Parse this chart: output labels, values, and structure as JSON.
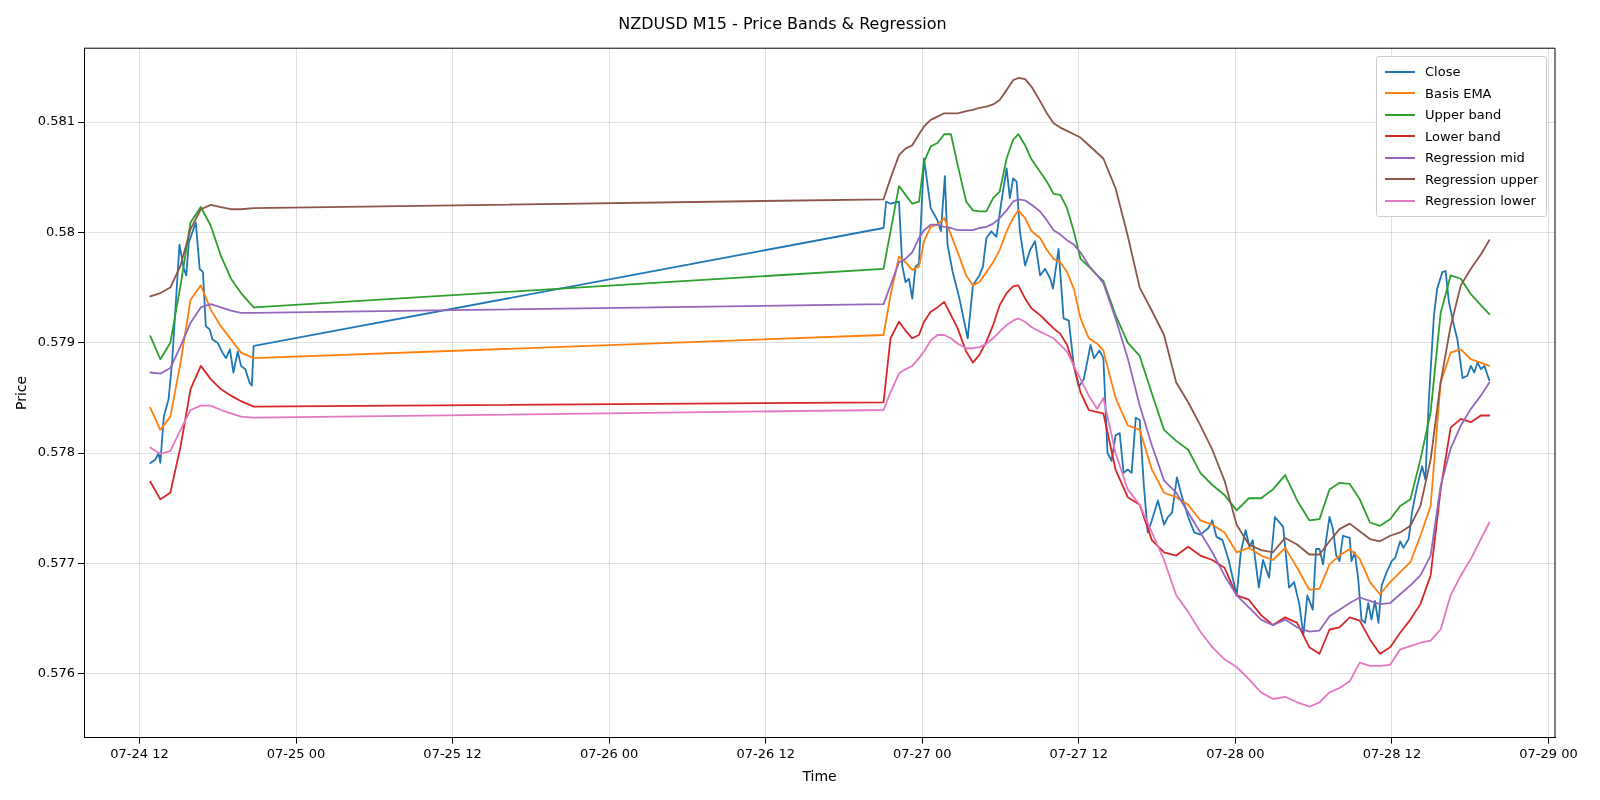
{
  "chart_data": {
    "type": "line",
    "title": "NZDUSD M15 - Price Bands & Regression",
    "xlabel": "Time",
    "ylabel": "Price",
    "xlim": [
      "--07-24T07:45",
      "--07-29T00:30"
    ],
    "ylim": [
      0.57542,
      0.58167
    ],
    "xticks": [
      {
        "value": "--07-24T12:00",
        "label": "07-24 12"
      },
      {
        "value": "--07-25T00:00",
        "label": "07-25 00"
      },
      {
        "value": "--07-25T12:00",
        "label": "07-25 12"
      },
      {
        "value": "--07-26T00:00",
        "label": "07-26 00"
      },
      {
        "value": "--07-26T12:00",
        "label": "07-26 12"
      },
      {
        "value": "--07-27T00:00",
        "label": "07-27 00"
      },
      {
        "value": "--07-27T12:00",
        "label": "07-27 12"
      },
      {
        "value": "--07-28T00:00",
        "label": "07-28 00"
      },
      {
        "value": "--07-28T12:00",
        "label": "07-28 12"
      },
      {
        "value": "--07-29T00:00",
        "label": "07-29 00"
      }
    ],
    "yticks": [
      0.576,
      0.577,
      0.578,
      0.579,
      0.58,
      0.581
    ],
    "grid": true,
    "legend": "top right",
    "x": [
      "--07-24T12:50",
      "--07-24T13:36",
      "--07-24T14:22",
      "--07-24T15:09",
      "--07-24T15:55",
      "--07-24T16:42",
      "--07-24T17:28",
      "--07-24T18:14",
      "--07-24T19:01",
      "--07-24T19:47",
      "--07-24T20:45",
      "--07-26T21:02",
      "--07-26T21:34",
      "--07-26T22:13",
      "--07-26T22:43",
      "--07-26T23:14",
      "--07-26T23:45",
      "--07-27T00:08",
      "--07-27T00:39",
      "--07-27T01:10",
      "--07-27T01:41",
      "--07-27T02:12",
      "--07-27T02:43",
      "--07-27T03:22",
      "--07-27T03:53",
      "--07-27T04:23",
      "--07-27T04:55",
      "--07-27T05:26",
      "--07-27T05:56",
      "--07-27T06:28",
      "--07-27T06:58",
      "--07-27T07:22",
      "--07-27T07:53",
      "--07-27T08:23",
      "--07-27T09:02",
      "--07-27T09:33",
      "--07-27T10:04",
      "--07-27T10:35",
      "--07-27T11:06",
      "--07-27T11:37",
      "--07-27T12:08",
      "--07-27T12:46",
      "--07-27T13:25",
      "--07-27T13:53",
      "--07-27T14:49",
      "--07-27T15:45",
      "--07-27T16:40",
      "--07-27T17:36",
      "--07-27T18:32",
      "--07-27T19:28",
      "--07-27T20:23",
      "--07-27T21:19",
      "--07-27T22:14",
      "--07-27T23:10",
      "--07-28T00:06",
      "--07-28T01:02",
      "--07-28T01:58",
      "--07-28T02:53",
      "--07-28T03:49",
      "--07-28T04:44",
      "--07-28T05:40",
      "--07-28T06:27",
      "--07-28T07:13",
      "--07-28T07:59",
      "--07-28T08:46",
      "--07-28T09:32",
      "--07-28T10:19",
      "--07-28T11:05",
      "--07-28T11:52",
      "--07-28T12:38",
      "--07-28T13:25",
      "--07-28T14:11",
      "--07-28T14:58",
      "--07-28T15:44",
      "--07-28T16:30",
      "--07-28T17:17",
      "--07-28T18:03",
      "--07-28T18:49",
      "--07-28T19:28"
    ],
    "series": [
      {
        "name": "Close",
        "color": "#1f77b4",
        "x": [
          "--07-24T12:50",
          "--07-24T13:13",
          "--07-24T13:28",
          "--07-24T13:36",
          "--07-24T13:52",
          "--07-24T14:14",
          "--07-24T14:30",
          "--07-24T15:04",
          "--07-24T15:24",
          "--07-24T15:35",
          "--07-24T15:47",
          "--07-24T16:19",
          "--07-24T16:37",
          "--07-24T16:52",
          "--07-24T17:05",
          "--07-24T17:23",
          "--07-24T17:36",
          "--07-24T17:59",
          "--07-24T18:22",
          "--07-24T18:38",
          "--07-24T18:56",
          "--07-24T19:12",
          "--07-24T19:32",
          "--07-24T19:47",
          "--07-24T20:07",
          "--07-24T20:26",
          "--07-24T20:37",
          "--07-24T20:45",
          "--07-26T21:02",
          "--07-26T21:14",
          "--07-26T21:34",
          "--07-26T22:13",
          "--07-26T22:28",
          "--07-26T22:43",
          "--07-26T22:59",
          "--07-26T23:14",
          "--07-26T23:29",
          "--07-26T23:45",
          "--07-27T00:08",
          "--07-27T00:39",
          "--07-27T01:10",
          "--07-27T01:26",
          "--07-27T01:44",
          "--07-27T01:56",
          "--07-27T02:20",
          "--07-27T02:51",
          "--07-27T03:29",
          "--07-27T03:53",
          "--07-27T04:23",
          "--07-27T04:39",
          "--07-27T04:55",
          "--07-27T05:18",
          "--07-27T05:41",
          "--07-27T06:04",
          "--07-27T06:28",
          "--07-27T06:43",
          "--07-27T06:58",
          "--07-27T07:14",
          "--07-27T07:29",
          "--07-27T07:53",
          "--07-27T08:16",
          "--07-27T08:39",
          "--07-27T09:02",
          "--07-27T09:25",
          "--07-27T09:49",
          "--07-27T10:01",
          "--07-27T10:27",
          "--07-27T10:50",
          "--07-27T11:14",
          "--07-27T11:37",
          "--07-27T12:00",
          "--07-27T12:23",
          "--07-27T12:54",
          "--07-27T13:10",
          "--07-27T13:35",
          "--07-27T13:53",
          "--07-27T14:12",
          "--07-27T14:31",
          "--07-27T14:49",
          "--07-27T15:08",
          "--07-27T15:26",
          "--07-27T15:45",
          "--07-27T16:03",
          "--07-27T16:22",
          "--07-27T16:40",
          "--07-27T16:59",
          "--07-27T17:17",
          "--07-27T17:36",
          "--07-27T18:04",
          "--07-27T18:32",
          "--07-27T18:50",
          "--07-27T19:09",
          "--07-27T19:31",
          "--07-27T19:55",
          "--07-27T20:23",
          "--07-27T20:51",
          "--07-27T21:19",
          "--07-27T21:56",
          "--07-27T22:14",
          "--07-27T22:33",
          "--07-27T23:01",
          "--07-27T23:29",
          "--07-28T00:06",
          "--07-28T00:25",
          "--07-28T00:47",
          "--07-28T01:05",
          "--07-28T01:20",
          "--07-28T01:48",
          "--07-28T02:07",
          "--07-28T02:35",
          "--07-28T03:02",
          "--07-28T03:40",
          "--07-28T04:07",
          "--07-28T04:30",
          "--07-28T04:54",
          "--07-28T05:13",
          "--07-28T05:31",
          "--07-28T05:56",
          "--07-28T06:11",
          "--07-28T06:27",
          "--07-28T06:43",
          "--07-28T06:58",
          "--07-28T07:13",
          "--07-28T07:29",
          "--07-28T07:44",
          "--07-28T07:59",
          "--07-28T08:15",
          "--07-28T08:46",
          "--07-28T08:54",
          "--07-28T09:09",
          "--07-28T09:25",
          "--07-28T09:40",
          "--07-28T09:56",
          "--07-28T10:11",
          "--07-28T10:26",
          "--07-28T10:42",
          "--07-28T10:58",
          "--07-28T11:13",
          "--07-28T11:36",
          "--07-28T11:59",
          "--07-28T12:15",
          "--07-28T12:38",
          "--07-28T12:53",
          "--07-28T13:17",
          "--07-28T13:32",
          "--07-28T13:56",
          "--07-28T14:19",
          "--07-28T14:34",
          "--07-28T14:50",
          "--07-28T15:13",
          "--07-28T15:28",
          "--07-28T15:52",
          "--07-28T16:07",
          "--07-28T16:22",
          "--07-28T16:46",
          "--07-28T17:01",
          "--07-28T17:25",
          "--07-28T17:47",
          "--07-28T18:03",
          "--07-28T18:19",
          "--07-28T18:34",
          "--07-28T18:49",
          "--07-28T19:05",
          "--07-28T19:28"
        ],
        "values": [
          0.57791,
          0.57794,
          0.578,
          0.57791,
          0.57833,
          0.57849,
          0.57882,
          0.57989,
          0.57967,
          0.57961,
          0.57991,
          0.58009,
          0.57967,
          0.57964,
          0.57915,
          0.57912,
          0.57903,
          0.579,
          0.57891,
          0.57886,
          0.57894,
          0.57873,
          0.57892,
          0.57879,
          0.57876,
          0.57864,
          0.57861,
          0.57897,
          0.58004,
          0.58028,
          0.58026,
          0.58028,
          0.5797,
          0.57955,
          0.57958,
          0.5794,
          0.57969,
          0.57972,
          0.58067,
          0.58022,
          0.58011,
          0.58001,
          0.58051,
          0.57989,
          0.57964,
          0.5794,
          0.57904,
          0.57952,
          0.57961,
          0.57969,
          0.57995,
          0.58001,
          0.57996,
          0.58028,
          0.58058,
          0.58031,
          0.58049,
          0.58046,
          0.58001,
          0.5797,
          0.57984,
          0.57992,
          0.57961,
          0.57967,
          0.57958,
          0.57949,
          0.57985,
          0.57922,
          0.5792,
          0.57879,
          0.5786,
          0.57867,
          0.57898,
          0.57886,
          0.57893,
          0.57886,
          0.578,
          0.57793,
          0.57816,
          0.57818,
          0.57782,
          0.57785,
          0.57782,
          0.57832,
          0.5783,
          0.57771,
          0.57728,
          0.57739,
          0.57757,
          0.57735,
          0.57742,
          0.57746,
          0.57778,
          0.5776,
          0.57742,
          0.57728,
          0.57726,
          0.57732,
          0.57739,
          0.57724,
          0.57721,
          0.57703,
          0.57671,
          0.5771,
          0.5773,
          0.57715,
          0.57721,
          0.57678,
          0.57703,
          0.57687,
          0.57742,
          0.57733,
          0.57678,
          0.57683,
          0.57663,
          0.57635,
          0.57671,
          0.57658,
          0.57713,
          0.57713,
          0.57699,
          0.57722,
          0.57742,
          0.57731,
          0.57707,
          0.57702,
          0.57725,
          0.57723,
          0.57702,
          0.5771,
          0.57686,
          0.57649,
          0.57646,
          0.57664,
          0.57649,
          0.57666,
          0.57646,
          0.5768,
          0.57692,
          0.57702,
          0.57705,
          0.5772,
          0.57714,
          0.57722,
          0.57746,
          0.5777,
          0.57788,
          0.57776,
          0.57849,
          0.57924,
          0.57949,
          0.57964,
          0.57965,
          0.57937,
          0.57915,
          0.57903,
          0.57868,
          0.5787,
          0.57879,
          0.57873,
          0.57882,
          0.57876,
          0.57879,
          0.57866
        ]
      },
      {
        "name": "Basis EMA",
        "color": "#ff7f0e",
        "values": [
          0.57841,
          0.57821,
          0.57833,
          0.57882,
          0.57939,
          0.57952,
          0.5793,
          0.57915,
          0.57903,
          0.57891,
          0.57886,
          0.57907,
          0.57943,
          0.57978,
          0.57973,
          0.57966,
          0.57969,
          0.57992,
          0.58005,
          0.58007,
          0.58013,
          0.57998,
          0.57982,
          0.57961,
          0.57952,
          0.57955,
          0.57964,
          0.57973,
          0.57984,
          0.58001,
          0.58013,
          0.5802,
          0.58013,
          0.58001,
          0.57995,
          0.57984,
          0.57976,
          0.57973,
          0.57964,
          0.57949,
          0.57922,
          0.57904,
          0.57899,
          0.57893,
          0.5785,
          0.57825,
          0.57821,
          0.57785,
          0.57764,
          0.5776,
          0.57753,
          0.57739,
          0.57735,
          0.57728,
          0.5771,
          0.57714,
          0.57707,
          0.57703,
          0.57714,
          0.57696,
          0.57676,
          0.57677,
          0.57699,
          0.57707,
          0.57713,
          0.57704,
          0.57683,
          0.57672,
          0.57683,
          0.57692,
          0.57701,
          0.57725,
          0.57752,
          0.57864,
          0.57891,
          0.57894,
          0.57885,
          0.57882,
          0.57879
        ]
      },
      {
        "name": "Upper band",
        "color": "#2ca02c",
        "values": [
          0.57906,
          0.57885,
          0.579,
          0.57952,
          0.58009,
          0.58023,
          0.58006,
          0.57979,
          0.57958,
          0.57945,
          0.57932,
          0.57967,
          0.58001,
          0.58042,
          0.58034,
          0.58026,
          0.58028,
          0.58064,
          0.58078,
          0.58081,
          0.58089,
          0.58089,
          0.58061,
          0.58028,
          0.5802,
          0.58019,
          0.58019,
          0.58031,
          0.58037,
          0.58067,
          0.58084,
          0.58089,
          0.58079,
          0.58066,
          0.58055,
          0.58046,
          0.58035,
          0.58034,
          0.58022,
          0.58001,
          0.57976,
          0.57969,
          0.57961,
          0.57956,
          0.57925,
          0.579,
          0.57888,
          0.57854,
          0.57821,
          0.57811,
          0.57803,
          0.57782,
          0.57771,
          0.57762,
          0.57748,
          0.57759,
          0.57759,
          0.57767,
          0.5778,
          0.57757,
          0.57739,
          0.5774,
          0.57767,
          0.57773,
          0.57772,
          0.57758,
          0.57737,
          0.57734,
          0.5774,
          0.57752,
          0.57758,
          0.57794,
          0.57837,
          0.57927,
          0.57961,
          0.57958,
          0.57944,
          0.57934,
          0.57926
        ]
      },
      {
        "name": "Lower band",
        "color": "#d62728",
        "values": [
          0.57774,
          0.57758,
          0.57764,
          0.57806,
          0.57858,
          0.57879,
          0.57867,
          0.57858,
          0.57852,
          0.57847,
          0.57842,
          0.57846,
          0.57904,
          0.57919,
          0.57911,
          0.57904,
          0.57907,
          0.57919,
          0.57928,
          0.57932,
          0.57937,
          0.57925,
          0.57913,
          0.57892,
          0.57882,
          0.57889,
          0.57901,
          0.57916,
          0.57934,
          0.57945,
          0.57951,
          0.57952,
          0.5794,
          0.57931,
          0.57925,
          0.57919,
          0.57913,
          0.57908,
          0.57898,
          0.57879,
          0.57855,
          0.57839,
          0.57837,
          0.57836,
          0.57785,
          0.5776,
          0.57753,
          0.57721,
          0.5771,
          0.57707,
          0.57715,
          0.57707,
          0.57703,
          0.57696,
          0.57671,
          0.57667,
          0.57653,
          0.57644,
          0.57651,
          0.57646,
          0.57624,
          0.57618,
          0.5764,
          0.57642,
          0.57651,
          0.57648,
          0.57631,
          0.57618,
          0.57624,
          0.57637,
          0.57649,
          0.57663,
          0.57689,
          0.57767,
          0.57823,
          0.57831,
          0.57828,
          0.57834,
          0.57834
        ]
      },
      {
        "name": "Regression mid",
        "color": "#9467bd",
        "values": [
          0.57873,
          0.57872,
          0.57877,
          0.57897,
          0.57918,
          0.57932,
          0.57935,
          0.57932,
          0.57929,
          0.57927,
          0.57927,
          0.57935,
          0.57952,
          0.57973,
          0.57976,
          0.57982,
          0.57995,
          0.58002,
          0.58007,
          0.58007,
          0.58005,
          0.58004,
          0.58002,
          0.58002,
          0.58002,
          0.58004,
          0.58005,
          0.58008,
          0.58013,
          0.5802,
          0.58028,
          0.5803,
          0.58029,
          0.58025,
          0.58019,
          0.58011,
          0.58002,
          0.57998,
          0.57993,
          0.57989,
          0.57982,
          0.5797,
          0.57961,
          0.57954,
          0.57922,
          0.57886,
          0.57843,
          0.57807,
          0.57775,
          0.57764,
          0.57746,
          0.57728,
          0.5771,
          0.57689,
          0.57671,
          0.5766,
          0.57649,
          0.57644,
          0.57649,
          0.57642,
          0.57638,
          0.57639,
          0.57652,
          0.57658,
          0.57664,
          0.57669,
          0.57666,
          0.57663,
          0.57664,
          0.57672,
          0.5768,
          0.57689,
          0.57707,
          0.5777,
          0.57804,
          0.57825,
          0.5784,
          0.57852,
          0.57864
        ]
      },
      {
        "name": "Regression upper",
        "color": "#8c564b",
        "values": [
          0.57942,
          0.57945,
          0.5795,
          0.5797,
          0.58003,
          0.58021,
          0.58025,
          0.58023,
          0.58021,
          0.58021,
          0.58022,
          0.5803,
          0.58049,
          0.5807,
          0.58076,
          0.58079,
          0.58089,
          0.58096,
          0.58102,
          0.58105,
          0.58108,
          0.58108,
          0.58108,
          0.5811,
          0.58111,
          0.58113,
          0.58114,
          0.58116,
          0.5812,
          0.58129,
          0.58138,
          0.5814,
          0.58139,
          0.58132,
          0.58119,
          0.58108,
          0.58099,
          0.58095,
          0.58092,
          0.58089,
          0.58086,
          0.58079,
          0.58072,
          0.58067,
          0.5804,
          0.57997,
          0.5795,
          0.57929,
          0.57907,
          0.57864,
          0.57846,
          0.57825,
          0.57803,
          0.57775,
          0.57735,
          0.57717,
          0.57712,
          0.5771,
          0.57723,
          0.57717,
          0.57708,
          0.57708,
          0.5772,
          0.57731,
          0.57736,
          0.57729,
          0.57722,
          0.5772,
          0.57725,
          0.57728,
          0.57734,
          0.57752,
          0.57794,
          0.57864,
          0.57915,
          0.57952,
          0.57967,
          0.5798,
          0.57993
        ]
      },
      {
        "name": "Regression lower",
        "color": "#e377c2",
        "values": [
          0.57805,
          0.57799,
          0.57802,
          0.57821,
          0.57839,
          0.57843,
          0.57843,
          0.57839,
          0.57836,
          0.57833,
          0.57832,
          0.57839,
          0.57855,
          0.57872,
          0.57876,
          0.57879,
          0.57886,
          0.57892,
          0.57902,
          0.57907,
          0.57907,
          0.57904,
          0.57899,
          0.57895,
          0.57895,
          0.57896,
          0.57899,
          0.57904,
          0.5791,
          0.57916,
          0.5792,
          0.57922,
          0.57919,
          0.57914,
          0.5791,
          0.57907,
          0.57904,
          0.57898,
          0.57892,
          0.57879,
          0.57867,
          0.57852,
          0.5784,
          0.5785,
          0.578,
          0.57767,
          0.57753,
          0.57728,
          0.57703,
          0.57671,
          0.57656,
          0.57638,
          0.57624,
          0.57613,
          0.57606,
          0.57595,
          0.57583,
          0.57577,
          0.57579,
          0.57574,
          0.5757,
          0.57574,
          0.57583,
          0.57587,
          0.57593,
          0.5761,
          0.57607,
          0.57607,
          0.57608,
          0.57622,
          0.57625,
          0.57628,
          0.5763,
          0.5764,
          0.57671,
          0.57689,
          0.57704,
          0.57722,
          0.57737
        ]
      }
    ]
  }
}
